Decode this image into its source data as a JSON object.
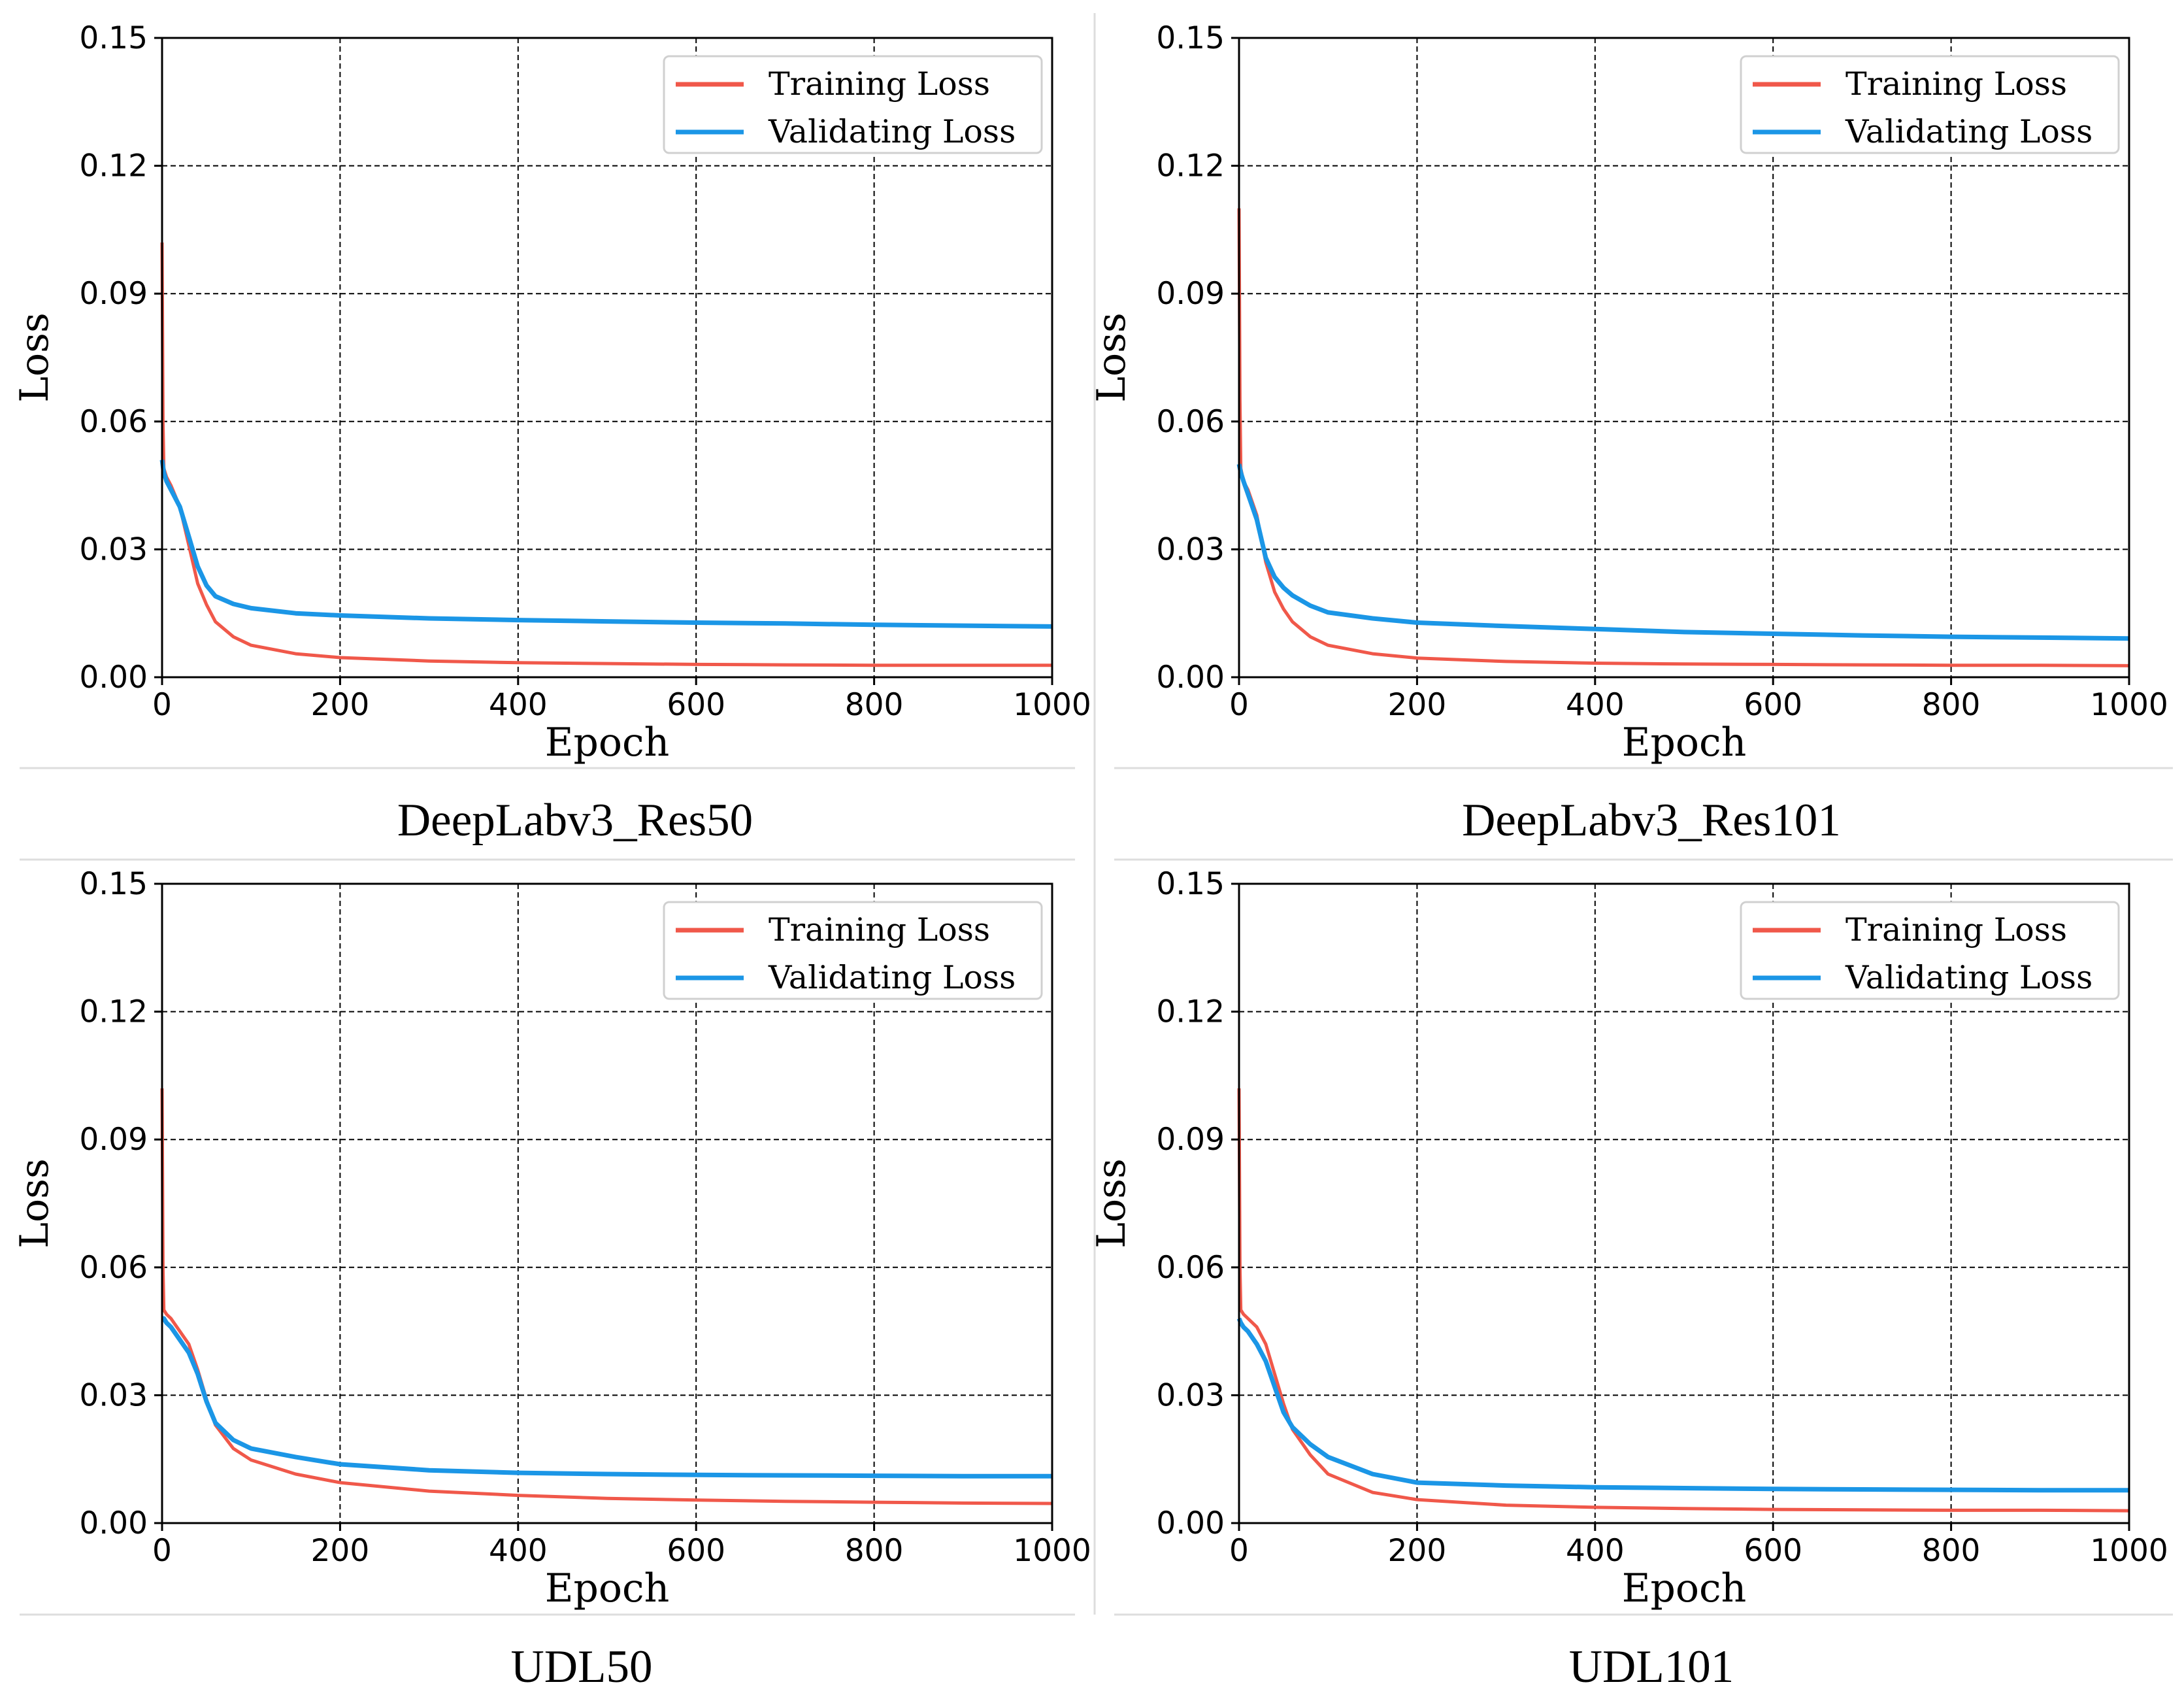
{
  "figure": {
    "captions": [
      "DeepLabv3_Res50",
      "DeepLabv3_Res101",
      "UDL50",
      "UDL101"
    ]
  },
  "colors": {
    "training": "#f0584a",
    "validating": "#1b96e6",
    "grid": "#000000",
    "separator": "#dddddd"
  },
  "chart_data": [
    {
      "type": "line",
      "title": "DeepLabv3_Res50",
      "xlabel": "Epoch",
      "ylabel": "Loss",
      "xlim": [
        0,
        1000
      ],
      "ylim": [
        0,
        0.15
      ],
      "xticks": [
        0,
        200,
        400,
        600,
        800,
        1000
      ],
      "xtick_labels": [
        "0",
        "200",
        "400",
        "600",
        "800",
        "1000"
      ],
      "yticks": [
        0.0,
        0.03,
        0.06,
        0.09,
        0.12,
        0.15
      ],
      "ytick_labels": [
        "0.00",
        "0.03",
        "0.06",
        "0.09",
        "0.12",
        "0.15"
      ],
      "grid": true,
      "legend_position": "top-right",
      "series": [
        {
          "name": "Training Loss",
          "x": [
            0,
            1,
            2,
            5,
            10,
            20,
            30,
            40,
            50,
            60,
            80,
            100,
            150,
            200,
            300,
            400,
            500,
            600,
            700,
            800,
            900,
            1000
          ],
          "values": [
            0.102,
            0.06,
            0.049,
            0.047,
            0.045,
            0.04,
            0.031,
            0.022,
            0.017,
            0.013,
            0.0095,
            0.0075,
            0.0055,
            0.0046,
            0.0038,
            0.0034,
            0.0032,
            0.003,
            0.0029,
            0.0028,
            0.0028,
            0.0028
          ]
        },
        {
          "name": "Validating Loss",
          "x": [
            0,
            2,
            5,
            10,
            20,
            30,
            40,
            50,
            60,
            80,
            100,
            150,
            200,
            300,
            400,
            500,
            600,
            700,
            800,
            900,
            1000
          ],
          "values": [
            0.051,
            0.048,
            0.046,
            0.044,
            0.04,
            0.033,
            0.026,
            0.0215,
            0.019,
            0.0172,
            0.0162,
            0.015,
            0.0145,
            0.0138,
            0.0134,
            0.0131,
            0.0128,
            0.0126,
            0.0123,
            0.0121,
            0.0119
          ]
        }
      ]
    },
    {
      "type": "line",
      "title": "DeepLabv3_Res101",
      "xlabel": "Epoch",
      "ylabel": "Loss",
      "xlim": [
        0,
        1000
      ],
      "ylim": [
        0,
        0.15
      ],
      "xticks": [
        0,
        200,
        400,
        600,
        800,
        1000
      ],
      "xtick_labels": [
        "0",
        "200",
        "400",
        "600",
        "800",
        "1000"
      ],
      "yticks": [
        0.0,
        0.03,
        0.06,
        0.09,
        0.12,
        0.15
      ],
      "ytick_labels": [
        "0.00",
        "0.03",
        "0.06",
        "0.09",
        "0.12",
        "0.15"
      ],
      "grid": true,
      "legend_position": "top-right",
      "series": [
        {
          "name": "Training Loss",
          "x": [
            0,
            1,
            2,
            5,
            10,
            20,
            30,
            40,
            50,
            60,
            80,
            100,
            150,
            200,
            300,
            400,
            500,
            600,
            700,
            800,
            900,
            1000
          ],
          "values": [
            0.11,
            0.065,
            0.049,
            0.046,
            0.044,
            0.038,
            0.027,
            0.02,
            0.016,
            0.013,
            0.0095,
            0.0075,
            0.0055,
            0.0045,
            0.0037,
            0.0033,
            0.0031,
            0.003,
            0.0029,
            0.0028,
            0.0028,
            0.0027
          ]
        },
        {
          "name": "Validating Loss",
          "x": [
            0,
            2,
            5,
            10,
            20,
            30,
            40,
            50,
            60,
            80,
            100,
            150,
            200,
            300,
            400,
            500,
            600,
            700,
            800,
            900,
            1000
          ],
          "values": [
            0.05,
            0.048,
            0.046,
            0.043,
            0.037,
            0.028,
            0.0235,
            0.021,
            0.0192,
            0.0168,
            0.0152,
            0.0138,
            0.0128,
            0.012,
            0.0113,
            0.0106,
            0.0102,
            0.0098,
            0.0095,
            0.0093,
            0.0091
          ]
        }
      ]
    },
    {
      "type": "line",
      "title": "UDL50",
      "xlabel": "Epoch",
      "ylabel": "Loss",
      "xlim": [
        0,
        1000
      ],
      "ylim": [
        0,
        0.15
      ],
      "xticks": [
        0,
        200,
        400,
        600,
        800,
        1000
      ],
      "xtick_labels": [
        "0",
        "200",
        "400",
        "600",
        "800",
        "1000"
      ],
      "yticks": [
        0.0,
        0.03,
        0.06,
        0.09,
        0.12,
        0.15
      ],
      "ytick_labels": [
        "0.00",
        "0.03",
        "0.06",
        "0.09",
        "0.12",
        "0.15"
      ],
      "grid": true,
      "legend_position": "top-right",
      "series": [
        {
          "name": "Training Loss",
          "x": [
            0,
            1,
            2,
            5,
            10,
            20,
            30,
            40,
            50,
            60,
            80,
            100,
            150,
            200,
            300,
            400,
            500,
            600,
            700,
            800,
            900,
            1000
          ],
          "values": [
            0.102,
            0.06,
            0.05,
            0.049,
            0.048,
            0.045,
            0.042,
            0.036,
            0.029,
            0.023,
            0.0175,
            0.0148,
            0.0115,
            0.0095,
            0.0075,
            0.0065,
            0.0058,
            0.0054,
            0.0051,
            0.0049,
            0.0047,
            0.0046
          ]
        },
        {
          "name": "Validating Loss",
          "x": [
            0,
            2,
            5,
            10,
            20,
            30,
            40,
            50,
            60,
            80,
            100,
            150,
            200,
            300,
            400,
            500,
            600,
            700,
            800,
            900,
            1000
          ],
          "values": [
            0.048,
            0.048,
            0.047,
            0.046,
            0.043,
            0.04,
            0.035,
            0.0285,
            0.0235,
            0.0195,
            0.0175,
            0.0155,
            0.0138,
            0.0124,
            0.0118,
            0.0115,
            0.0113,
            0.0112,
            0.0111,
            0.011,
            0.011
          ]
        }
      ]
    },
    {
      "type": "line",
      "title": "UDL101",
      "xlabel": "Epoch",
      "ylabel": "Loss",
      "xlim": [
        0,
        1000
      ],
      "ylim": [
        0,
        0.15
      ],
      "xticks": [
        0,
        200,
        400,
        600,
        800,
        1000
      ],
      "xtick_labels": [
        "0",
        "200",
        "400",
        "600",
        "800",
        "1000"
      ],
      "yticks": [
        0.0,
        0.03,
        0.06,
        0.09,
        0.12,
        0.15
      ],
      "ytick_labels": [
        "0.00",
        "0.03",
        "0.06",
        "0.09",
        "0.12",
        "0.15"
      ],
      "grid": true,
      "legend_position": "top-right",
      "series": [
        {
          "name": "Training Loss",
          "x": [
            0,
            1,
            2,
            5,
            10,
            20,
            30,
            40,
            50,
            60,
            80,
            100,
            150,
            200,
            300,
            400,
            500,
            600,
            700,
            800,
            900,
            1000
          ],
          "values": [
            0.102,
            0.06,
            0.05,
            0.049,
            0.048,
            0.046,
            0.042,
            0.035,
            0.028,
            0.022,
            0.016,
            0.0115,
            0.0072,
            0.0055,
            0.0042,
            0.0037,
            0.0034,
            0.0032,
            0.0031,
            0.003,
            0.003,
            0.0029
          ]
        },
        {
          "name": "Validating Loss",
          "x": [
            0,
            2,
            5,
            10,
            20,
            30,
            40,
            50,
            60,
            80,
            100,
            150,
            200,
            300,
            400,
            500,
            600,
            700,
            800,
            900,
            1000
          ],
          "values": [
            0.048,
            0.047,
            0.046,
            0.045,
            0.042,
            0.038,
            0.032,
            0.026,
            0.0225,
            0.0185,
            0.0155,
            0.0115,
            0.0095,
            0.0088,
            0.0084,
            0.0082,
            0.008,
            0.0079,
            0.0078,
            0.0077,
            0.0077
          ]
        }
      ]
    }
  ]
}
